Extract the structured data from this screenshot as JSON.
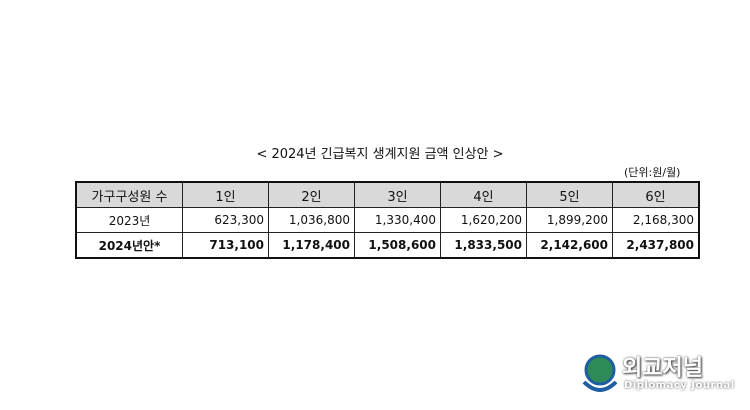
{
  "title": "< 2024년 긴급복지 생계지원 금액 인상안 >",
  "unit": "(단위:원/월)",
  "table": {
    "header": [
      "가구구성원 수",
      "1인",
      "2인",
      "3인",
      "4인",
      "5인",
      "6인"
    ],
    "rows": [
      [
        "2023년",
        "623,300",
        "1,036,800",
        "1,330,400",
        "1,620,200",
        "1,899,200",
        "2,168,300"
      ],
      [
        "2024년안*",
        "713,100",
        "1,178,400",
        "1,508,600",
        "1,833,500",
        "2,142,600",
        "2,437,800"
      ]
    ]
  },
  "watermark": {
    "title": "외교저널",
    "subtitle": "Diplomacy Journal"
  }
}
